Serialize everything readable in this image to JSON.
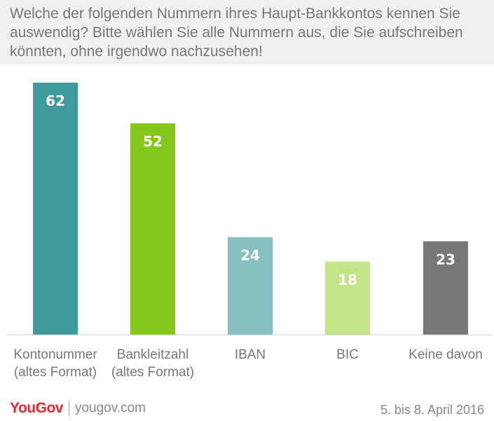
{
  "chart_data": {
    "type": "bar",
    "title": "Welche der folgenden Nummern ihres Haupt-Bankkontos kennen Sie auswendig? Bitte wählen Sie alle Nummern aus, die Sie aufschreiben könnten, ohne irgendwo nachzusehen!",
    "categories": [
      [
        "Kontonummer",
        "(altes Format)"
      ],
      [
        "Bankleitzahl",
        "(altes Format)"
      ],
      [
        "IBAN"
      ],
      [
        "BIC"
      ],
      [
        "Keine davon"
      ]
    ],
    "values": [
      62,
      52,
      24,
      18,
      23
    ],
    "colors": [
      "#3f9b9b",
      "#84c81e",
      "#86c0c0",
      "#c4e488",
      "#777777"
    ],
    "ylim": [
      0,
      62
    ],
    "xlabel": "",
    "ylabel": "",
    "grid": false
  },
  "footer": {
    "logo_text": "YouGov",
    "url": "yougov.com",
    "date": "5. bis 8. April 2016"
  }
}
